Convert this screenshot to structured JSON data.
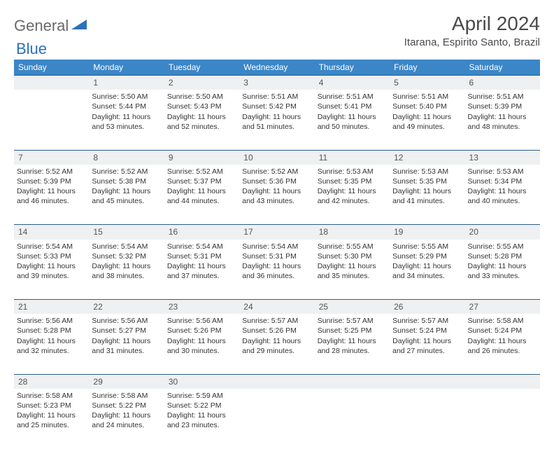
{
  "logo": {
    "general": "General",
    "blue": "Blue"
  },
  "title": "April 2024",
  "location": "Itarana, Espirito Santo, Brazil",
  "colors": {
    "header_bg": "#3b86c7",
    "header_text": "#ffffff",
    "border": "#2b5d88",
    "daynum_bg": "#eef0f1",
    "text": "#333333",
    "logo_gray": "#6a6a6a",
    "logo_blue": "#2b72b8"
  },
  "weekdays": [
    "Sunday",
    "Monday",
    "Tuesday",
    "Wednesday",
    "Thursday",
    "Friday",
    "Saturday"
  ],
  "weeks": [
    [
      null,
      {
        "d": "1",
        "sr": "5:50 AM",
        "ss": "5:44 PM",
        "dl": "11 hours and 53 minutes."
      },
      {
        "d": "2",
        "sr": "5:50 AM",
        "ss": "5:43 PM",
        "dl": "11 hours and 52 minutes."
      },
      {
        "d": "3",
        "sr": "5:51 AM",
        "ss": "5:42 PM",
        "dl": "11 hours and 51 minutes."
      },
      {
        "d": "4",
        "sr": "5:51 AM",
        "ss": "5:41 PM",
        "dl": "11 hours and 50 minutes."
      },
      {
        "d": "5",
        "sr": "5:51 AM",
        "ss": "5:40 PM",
        "dl": "11 hours and 49 minutes."
      },
      {
        "d": "6",
        "sr": "5:51 AM",
        "ss": "5:39 PM",
        "dl": "11 hours and 48 minutes."
      }
    ],
    [
      {
        "d": "7",
        "sr": "5:52 AM",
        "ss": "5:39 PM",
        "dl": "11 hours and 46 minutes."
      },
      {
        "d": "8",
        "sr": "5:52 AM",
        "ss": "5:38 PM",
        "dl": "11 hours and 45 minutes."
      },
      {
        "d": "9",
        "sr": "5:52 AM",
        "ss": "5:37 PM",
        "dl": "11 hours and 44 minutes."
      },
      {
        "d": "10",
        "sr": "5:52 AM",
        "ss": "5:36 PM",
        "dl": "11 hours and 43 minutes."
      },
      {
        "d": "11",
        "sr": "5:53 AM",
        "ss": "5:35 PM",
        "dl": "11 hours and 42 minutes."
      },
      {
        "d": "12",
        "sr": "5:53 AM",
        "ss": "5:35 PM",
        "dl": "11 hours and 41 minutes."
      },
      {
        "d": "13",
        "sr": "5:53 AM",
        "ss": "5:34 PM",
        "dl": "11 hours and 40 minutes."
      }
    ],
    [
      {
        "d": "14",
        "sr": "5:54 AM",
        "ss": "5:33 PM",
        "dl": "11 hours and 39 minutes."
      },
      {
        "d": "15",
        "sr": "5:54 AM",
        "ss": "5:32 PM",
        "dl": "11 hours and 38 minutes."
      },
      {
        "d": "16",
        "sr": "5:54 AM",
        "ss": "5:31 PM",
        "dl": "11 hours and 37 minutes."
      },
      {
        "d": "17",
        "sr": "5:54 AM",
        "ss": "5:31 PM",
        "dl": "11 hours and 36 minutes."
      },
      {
        "d": "18",
        "sr": "5:55 AM",
        "ss": "5:30 PM",
        "dl": "11 hours and 35 minutes."
      },
      {
        "d": "19",
        "sr": "5:55 AM",
        "ss": "5:29 PM",
        "dl": "11 hours and 34 minutes."
      },
      {
        "d": "20",
        "sr": "5:55 AM",
        "ss": "5:28 PM",
        "dl": "11 hours and 33 minutes."
      }
    ],
    [
      {
        "d": "21",
        "sr": "5:56 AM",
        "ss": "5:28 PM",
        "dl": "11 hours and 32 minutes."
      },
      {
        "d": "22",
        "sr": "5:56 AM",
        "ss": "5:27 PM",
        "dl": "11 hours and 31 minutes."
      },
      {
        "d": "23",
        "sr": "5:56 AM",
        "ss": "5:26 PM",
        "dl": "11 hours and 30 minutes."
      },
      {
        "d": "24",
        "sr": "5:57 AM",
        "ss": "5:26 PM",
        "dl": "11 hours and 29 minutes."
      },
      {
        "d": "25",
        "sr": "5:57 AM",
        "ss": "5:25 PM",
        "dl": "11 hours and 28 minutes."
      },
      {
        "d": "26",
        "sr": "5:57 AM",
        "ss": "5:24 PM",
        "dl": "11 hours and 27 minutes."
      },
      {
        "d": "27",
        "sr": "5:58 AM",
        "ss": "5:24 PM",
        "dl": "11 hours and 26 minutes."
      }
    ],
    [
      {
        "d": "28",
        "sr": "5:58 AM",
        "ss": "5:23 PM",
        "dl": "11 hours and 25 minutes."
      },
      {
        "d": "29",
        "sr": "5:58 AM",
        "ss": "5:22 PM",
        "dl": "11 hours and 24 minutes."
      },
      {
        "d": "30",
        "sr": "5:59 AM",
        "ss": "5:22 PM",
        "dl": "11 hours and 23 minutes."
      },
      null,
      null,
      null,
      null
    ]
  ],
  "labels": {
    "sunrise": "Sunrise:",
    "sunset": "Sunset:",
    "daylight": "Daylight:"
  }
}
